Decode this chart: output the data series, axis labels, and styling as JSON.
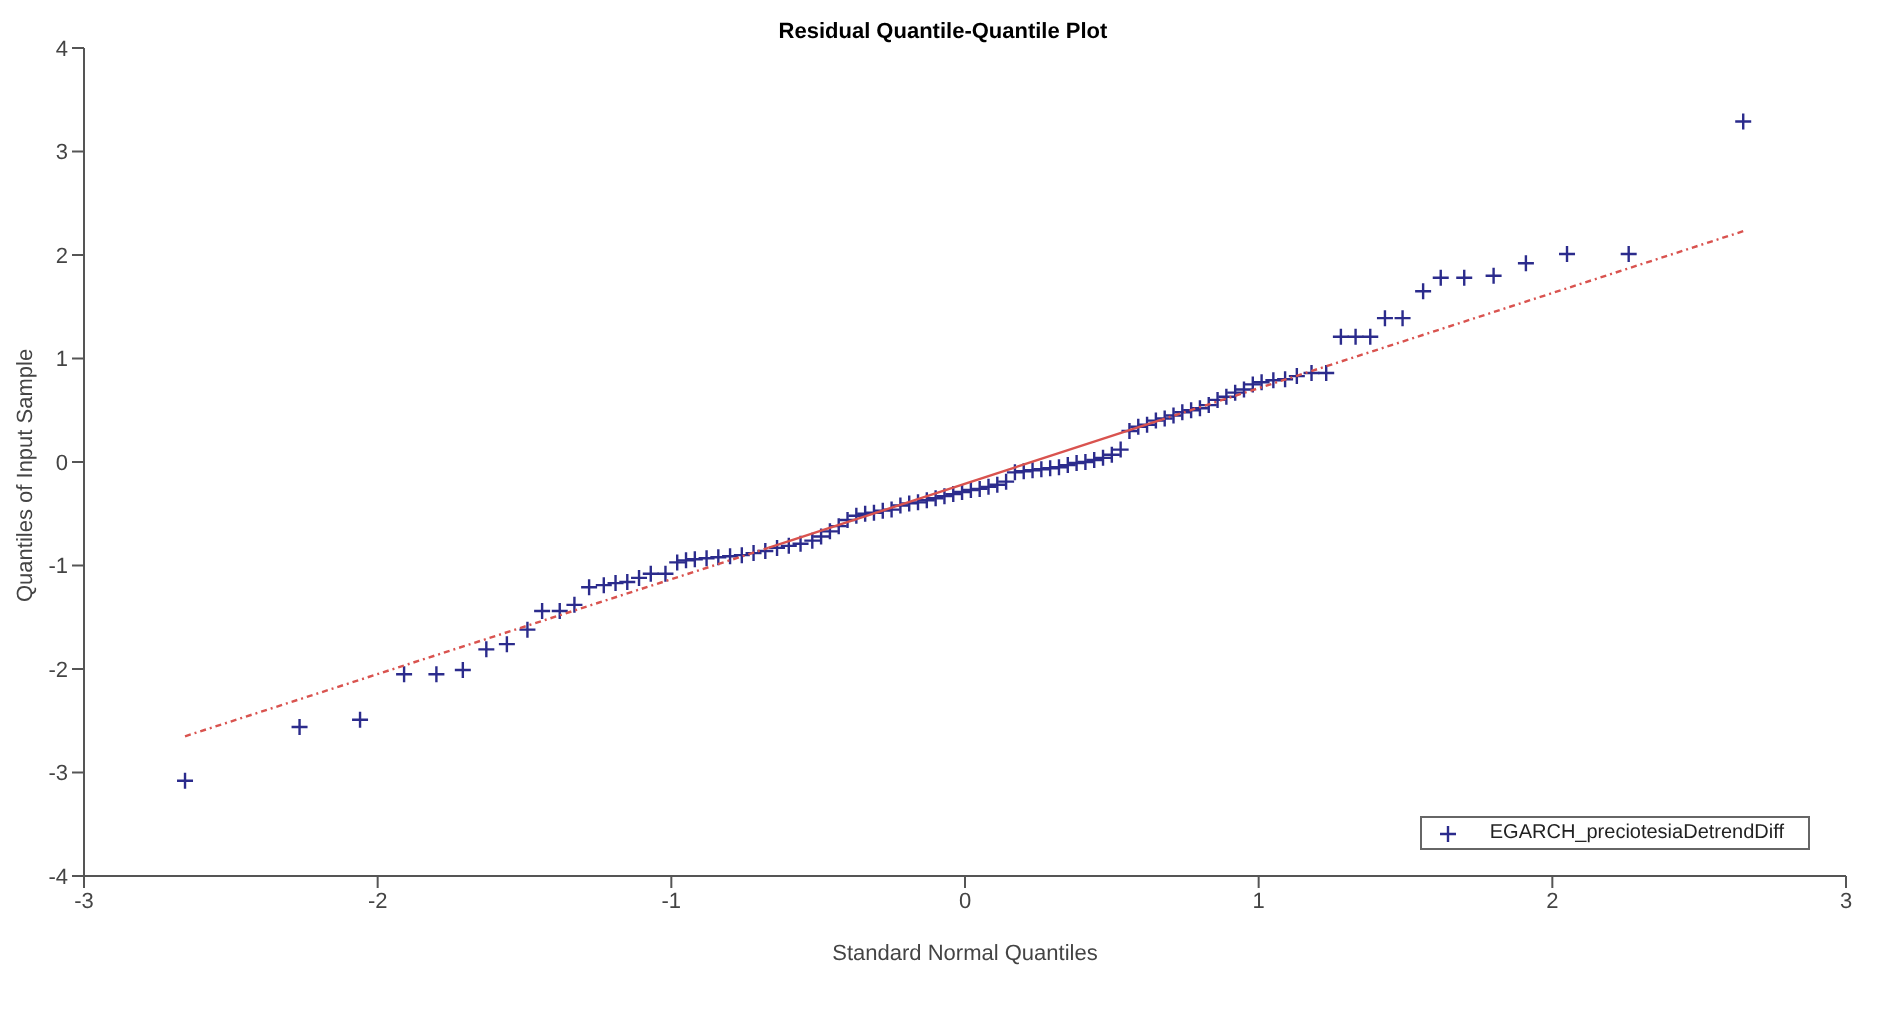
{
  "chart_data": {
    "type": "scatter",
    "title": "Residual Quantile-Quantile Plot",
    "xlabel": "Standard Normal Quantiles",
    "ylabel": "Quantiles of Input Sample",
    "xlim": [
      -3,
      3
    ],
    "xticks": [
      -3,
      -2,
      -1,
      0,
      1,
      2,
      3
    ],
    "ylim": [
      -4,
      4
    ],
    "yticks": [
      -4,
      -3,
      -2,
      -1,
      0,
      1,
      2,
      3,
      4
    ],
    "legend": "bottom right",
    "series": [
      {
        "type": "line",
        "marker": "none",
        "color": "#d9534f",
        "line_style": "solid",
        "x": [
          -0.67,
          0.67
        ],
        "values": [
          -0.83,
          0.41
        ]
      },
      {
        "type": "line",
        "marker": "none",
        "color": "#d9534f",
        "line_style": "dashed",
        "x": [
          -2.656,
          -0.67
        ],
        "values": [
          -2.65,
          -0.83
        ]
      },
      {
        "type": "line",
        "marker": "none",
        "color": "#d9534f",
        "line_style": "dashed",
        "x": [
          2.65,
          0.67
        ],
        "values": [
          2.23,
          0.41
        ]
      },
      {
        "marker": "cross",
        "name": "EGARCH_preciotesiaDetrendDiff",
        "color": "#2b2b8c",
        "x": [
          -2.656,
          -2.266,
          -2.06,
          -1.91,
          -1.8,
          -1.71,
          -1.63,
          -1.56,
          -1.49,
          -1.44,
          -1.38,
          -1.33,
          -1.28,
          -1.23,
          -1.19,
          -1.15,
          -1.11,
          -1.07,
          -1.02,
          -0.98,
          -0.95,
          -0.92,
          -0.88,
          -0.84,
          -0.8,
          -0.76,
          -0.72,
          -0.68,
          -0.64,
          -0.6,
          -0.56,
          -0.52,
          -0.49,
          -0.46,
          -0.43,
          -0.4,
          -0.37,
          -0.34,
          -0.31,
          -0.28,
          -0.25,
          -0.22,
          -0.19,
          -0.16,
          -0.13,
          -0.1,
          -0.07,
          -0.04,
          -0.01,
          0.02,
          0.05,
          0.08,
          0.11,
          0.14,
          0.17,
          0.2,
          0.23,
          0.26,
          0.29,
          0.32,
          0.35,
          0.38,
          0.41,
          0.44,
          0.47,
          0.5,
          0.53,
          0.56,
          0.59,
          0.62,
          0.65,
          0.68,
          0.71,
          0.74,
          0.77,
          0.8,
          0.83,
          0.86,
          0.89,
          0.92,
          0.95,
          0.98,
          1.01,
          1.05,
          1.09,
          1.13,
          1.18,
          1.23,
          1.28,
          1.33,
          1.38,
          1.43,
          1.49,
          1.56,
          1.62,
          1.7,
          1.8,
          1.91,
          2.05,
          2.26,
          2.65
        ],
        "values": [
          -3.08,
          -2.56,
          -2.49,
          -2.05,
          -2.05,
          -2.01,
          -1.81,
          -1.76,
          -1.62,
          -1.44,
          -1.44,
          -1.38,
          -1.21,
          -1.19,
          -1.17,
          -1.16,
          -1.12,
          -1.08,
          -1.08,
          -0.97,
          -0.95,
          -0.94,
          -0.93,
          -0.92,
          -0.91,
          -0.9,
          -0.88,
          -0.86,
          -0.83,
          -0.81,
          -0.79,
          -0.76,
          -0.72,
          -0.67,
          -0.62,
          -0.56,
          -0.52,
          -0.5,
          -0.49,
          -0.47,
          -0.46,
          -0.42,
          -0.4,
          -0.39,
          -0.37,
          -0.35,
          -0.33,
          -0.31,
          -0.29,
          -0.27,
          -0.26,
          -0.24,
          -0.22,
          -0.19,
          -0.1,
          -0.09,
          -0.08,
          -0.07,
          -0.06,
          -0.05,
          -0.03,
          -0.01,
          0,
          0.02,
          0.04,
          0.07,
          0.12,
          0.3,
          0.34,
          0.36,
          0.4,
          0.42,
          0.45,
          0.48,
          0.5,
          0.52,
          0.55,
          0.6,
          0.63,
          0.67,
          0.7,
          0.75,
          0.77,
          0.79,
          0.8,
          0.83,
          0.86,
          0.86,
          1.21,
          1.21,
          1.21,
          1.39,
          1.39,
          1.65,
          1.78,
          1.78,
          1.8,
          1.92,
          2.01,
          2.01,
          3.29
        ]
      }
    ]
  }
}
